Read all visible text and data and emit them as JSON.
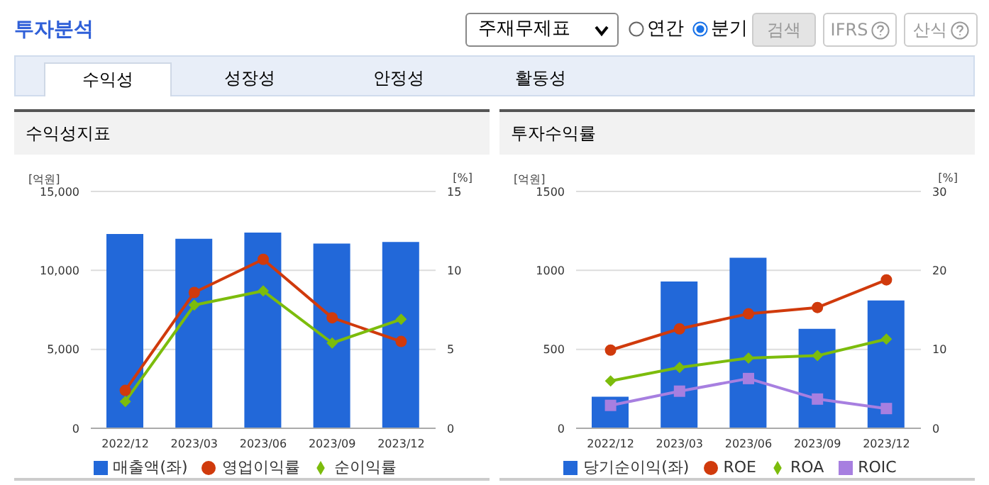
{
  "chart_data": [
    {
      "type": "other",
      "title": "투자분석",
      "annotations": [
        "주재무제표",
        "연간",
        "분기",
        "검색",
        "IFRS",
        "산식",
        "수익성",
        "성장성",
        "안정성",
        "활동성"
      ]
    },
    {
      "type": "bar",
      "title": "수익성지표",
      "ylabel": "[억원]",
      "y2label": "[%]",
      "categories": [
        "2022/12",
        "2023/03",
        "2023/06",
        "2023/09",
        "2023/12"
      ],
      "series": [
        {
          "name": "매출액(좌)",
          "type": "bar",
          "color": "#2268d9",
          "values": [
            12300,
            12000,
            12400,
            11700,
            11800
          ]
        },
        {
          "name": "영업이익률",
          "type": "line",
          "axis": "y2",
          "marker": "circle",
          "color": "#d03a0c",
          "values": [
            2.4,
            8.6,
            10.7,
            7.0,
            5.5
          ]
        },
        {
          "name": "순이익률",
          "type": "line",
          "axis": "y2",
          "marker": "diamond",
          "color": "#7cbc0c",
          "values": [
            1.7,
            7.8,
            8.7,
            5.4,
            6.9
          ]
        }
      ],
      "ylim": [
        0,
        15000
      ],
      "yticks": [
        0,
        {
          "value": 5000,
          "label": "5,000"
        },
        {
          "value": 10000,
          "label": "10,000"
        },
        {
          "value": 15000,
          "label": "15,000"
        }
      ],
      "y2lim": [
        0,
        15
      ],
      "y2ticks": [
        0,
        5,
        10,
        15
      ],
      "grid": "y",
      "legend": "bottom"
    },
    {
      "type": "bar",
      "title": "투자수익률",
      "ylabel": "[억원]",
      "y2label": "[%]",
      "categories": [
        "2022/12",
        "2023/03",
        "2023/06",
        "2023/09",
        "2023/12"
      ],
      "series": [
        {
          "name": "당기순이익(좌)",
          "type": "bar",
          "color": "#2268d9",
          "values": [
            200,
            930,
            1080,
            630,
            810
          ]
        },
        {
          "name": "ROE",
          "type": "line",
          "axis": "y2",
          "marker": "circle",
          "color": "#d03a0c",
          "values": [
            9.9,
            12.6,
            14.5,
            15.3,
            18.8
          ]
        },
        {
          "name": "ROA",
          "type": "line",
          "axis": "y2",
          "marker": "diamond",
          "color": "#7cbc0c",
          "values": [
            6.0,
            7.7,
            8.9,
            9.2,
            11.3
          ]
        },
        {
          "name": "ROIC",
          "type": "line",
          "axis": "y2",
          "marker": "square",
          "color": "#a77fe0",
          "values": [
            2.9,
            4.7,
            6.3,
            3.7,
            2.5
          ]
        }
      ],
      "ylim": [
        0,
        1500
      ],
      "yticks": [
        0,
        500,
        1000,
        1500
      ],
      "y2lim": [
        0,
        30
      ],
      "y2ticks": [
        0,
        10,
        20,
        30
      ],
      "grid": "y",
      "legend": "bottom"
    }
  ]
}
